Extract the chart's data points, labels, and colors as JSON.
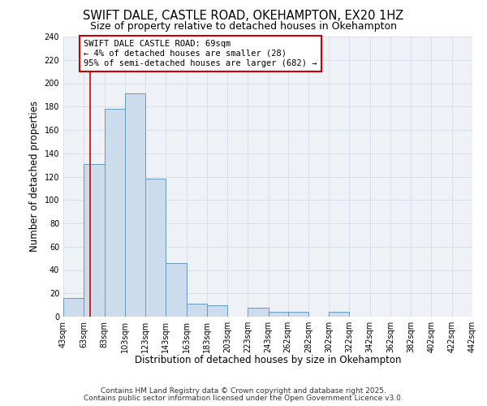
{
  "title": "SWIFT DALE, CASTLE ROAD, OKEHAMPTON, EX20 1HZ",
  "subtitle": "Size of property relative to detached houses in Okehampton",
  "xlabel": "Distribution of detached houses by size in Okehampton",
  "ylabel": "Number of detached properties",
  "bin_edges": [
    43,
    63,
    83,
    103,
    123,
    143,
    163,
    183,
    203,
    223,
    243,
    262,
    282,
    302,
    322,
    342,
    362,
    382,
    402,
    422,
    442
  ],
  "bar_heights": [
    16,
    131,
    178,
    191,
    118,
    46,
    11,
    10,
    0,
    8,
    4,
    4,
    0,
    4,
    0,
    0,
    0,
    0,
    0,
    0
  ],
  "bar_color": "#ccdcec",
  "bar_edge_color": "#6699bb",
  "grid_color": "#d0d8e0",
  "bg_color": "#eef2f6",
  "vline_x": 69,
  "vline_color": "#cc0000",
  "annotation_text": "SWIFT DALE CASTLE ROAD: 69sqm\n← 4% of detached houses are smaller (28)\n95% of semi-detached houses are larger (682) →",
  "annotation_box_color": "#cc0000",
  "footer_line1": "Contains HM Land Registry data © Crown copyright and database right 2025.",
  "footer_line2": "Contains public sector information licensed under the Open Government Licence v3.0.",
  "ylim": [
    0,
    240
  ],
  "yticks": [
    0,
    20,
    40,
    60,
    80,
    100,
    120,
    140,
    160,
    180,
    200,
    220,
    240
  ],
  "title_fontsize": 10.5,
  "subtitle_fontsize": 9,
  "axis_label_fontsize": 8.5,
  "tick_fontsize": 7,
  "annotation_fontsize": 7.5,
  "footer_fontsize": 6.5
}
